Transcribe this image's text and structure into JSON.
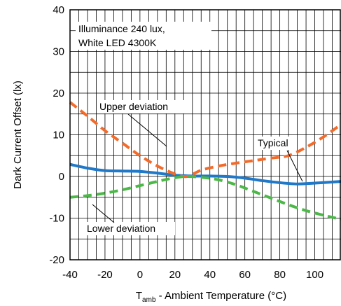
{
  "chart_data": {
    "type": "line",
    "ylabel": "Dark Current Offset (lx)",
    "xlabel": {
      "main": "T",
      "sub": "amb",
      "rest": " - Ambient Temperature (°C)"
    },
    "xlim": [
      -40,
      115
    ],
    "ylim": [
      -20,
      40
    ],
    "x_ticks": [
      -40,
      -20,
      0,
      20,
      40,
      60,
      80,
      100
    ],
    "y_ticks": [
      -20,
      -10,
      0,
      10,
      20,
      30,
      40
    ],
    "grid": true,
    "note": [
      "Illuminance 240 lux,",
      "White LED 4300K"
    ],
    "series": [
      {
        "name": "Typical",
        "color": "#1f78c8",
        "style": "solid",
        "x": [
          -40,
          -30,
          -20,
          -10,
          0,
          10,
          20,
          30,
          40,
          50,
          60,
          70,
          80,
          90,
          100,
          115
        ],
        "y": [
          2.9,
          2,
          1.4,
          1.3,
          1.2,
          0.8,
          0.3,
          0.1,
          0.1,
          0,
          -0.4,
          -1,
          -1.5,
          -1.8,
          -1.6,
          -1.2
        ]
      },
      {
        "name": "Upper deviation",
        "color": "#f26b2a",
        "style": "dashed",
        "x": [
          -40,
          -30,
          -20,
          -10,
          0,
          10,
          20,
          27,
          35,
          45,
          55,
          65,
          75,
          85,
          95,
          105,
          115
        ],
        "y": [
          17.8,
          14.5,
          11,
          8,
          5,
          2.5,
          0.6,
          0,
          1.5,
          2.5,
          3.2,
          3.8,
          4.4,
          5,
          7,
          9.5,
          12.5
        ]
      },
      {
        "name": "Lower deviation",
        "color": "#4cb848",
        "style": "dashed",
        "x": [
          -40,
          -30,
          -20,
          -10,
          0,
          10,
          20,
          27,
          35,
          45,
          55,
          65,
          75,
          85,
          95,
          105,
          115
        ],
        "y": [
          -5,
          -4.6,
          -4,
          -3.2,
          -2.2,
          -1.2,
          -0.3,
          0,
          -0.2,
          -0.8,
          -2,
          -3.6,
          -5.2,
          -6.8,
          -8.2,
          -9.3,
          -10.3
        ]
      }
    ],
    "labels": [
      "Upper deviation",
      "Typical",
      "Lower deviation"
    ]
  }
}
